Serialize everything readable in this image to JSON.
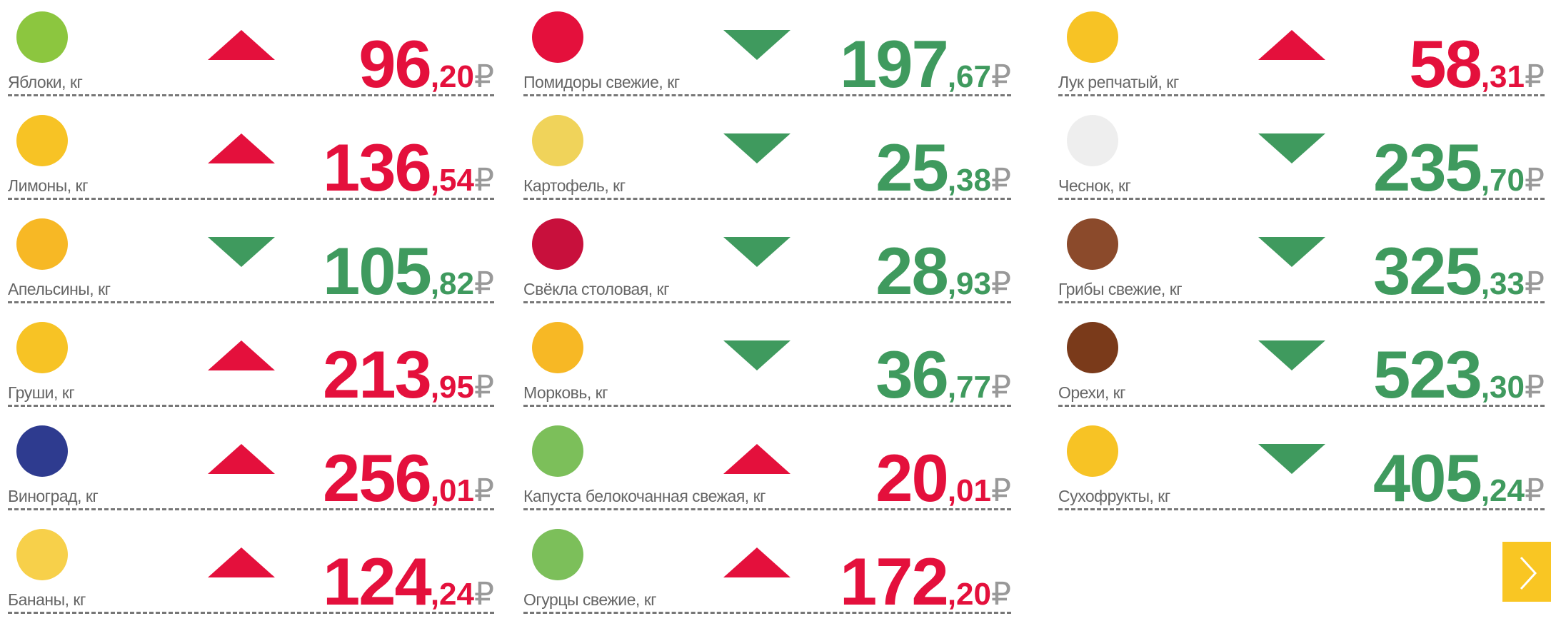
{
  "currency": "₽",
  "columns": [
    {
      "items": [
        {
          "name": "Яблоки, кг",
          "whole": "96",
          "fraction": ",20",
          "trend": "up"
        },
        {
          "name": "Лимоны, кг",
          "whole": "136",
          "fraction": ",54",
          "trend": "up"
        },
        {
          "name": "Апельсины, кг",
          "whole": "105",
          "fraction": ",82",
          "trend": "down"
        },
        {
          "name": "Груши, кг",
          "whole": "213",
          "fraction": ",95",
          "trend": "up"
        },
        {
          "name": "Виноград, кг",
          "whole": "256",
          "fraction": ",01",
          "trend": "up"
        },
        {
          "name": "Бананы, кг",
          "whole": "124",
          "fraction": ",24",
          "trend": "up"
        }
      ]
    },
    {
      "items": [
        {
          "name": "Помидоры свежие, кг",
          "whole": "197",
          "fraction": ",67",
          "trend": "down"
        },
        {
          "name": "Картофель, кг",
          "whole": "25",
          "fraction": ",38",
          "trend": "down"
        },
        {
          "name": "Свёкла столовая, кг",
          "whole": "28",
          "fraction": ",93",
          "trend": "down"
        },
        {
          "name": "Морковь, кг",
          "whole": "36",
          "fraction": ",77",
          "trend": "down"
        },
        {
          "name": "Капуста белокочанная свежая, кг",
          "whole": "20",
          "fraction": ",01",
          "trend": "up"
        },
        {
          "name": "Огурцы свежие, кг",
          "whole": "172",
          "fraction": ",20",
          "trend": "up"
        }
      ]
    },
    {
      "items": [
        {
          "name": "Лук репчатый, кг",
          "whole": "58",
          "fraction": ",31",
          "trend": "up"
        },
        {
          "name": "Чеснок, кг",
          "whole": "235",
          "fraction": ",70",
          "trend": "down"
        },
        {
          "name": "Грибы свежие, кг",
          "whole": "325",
          "fraction": ",33",
          "trend": "down"
        },
        {
          "name": "Орехи, кг",
          "whole": "523",
          "fraction": ",30",
          "trend": "down"
        },
        {
          "name": "Сухофрукты, кг",
          "whole": "405",
          "fraction": ",24",
          "trend": "down"
        }
      ]
    }
  ]
}
